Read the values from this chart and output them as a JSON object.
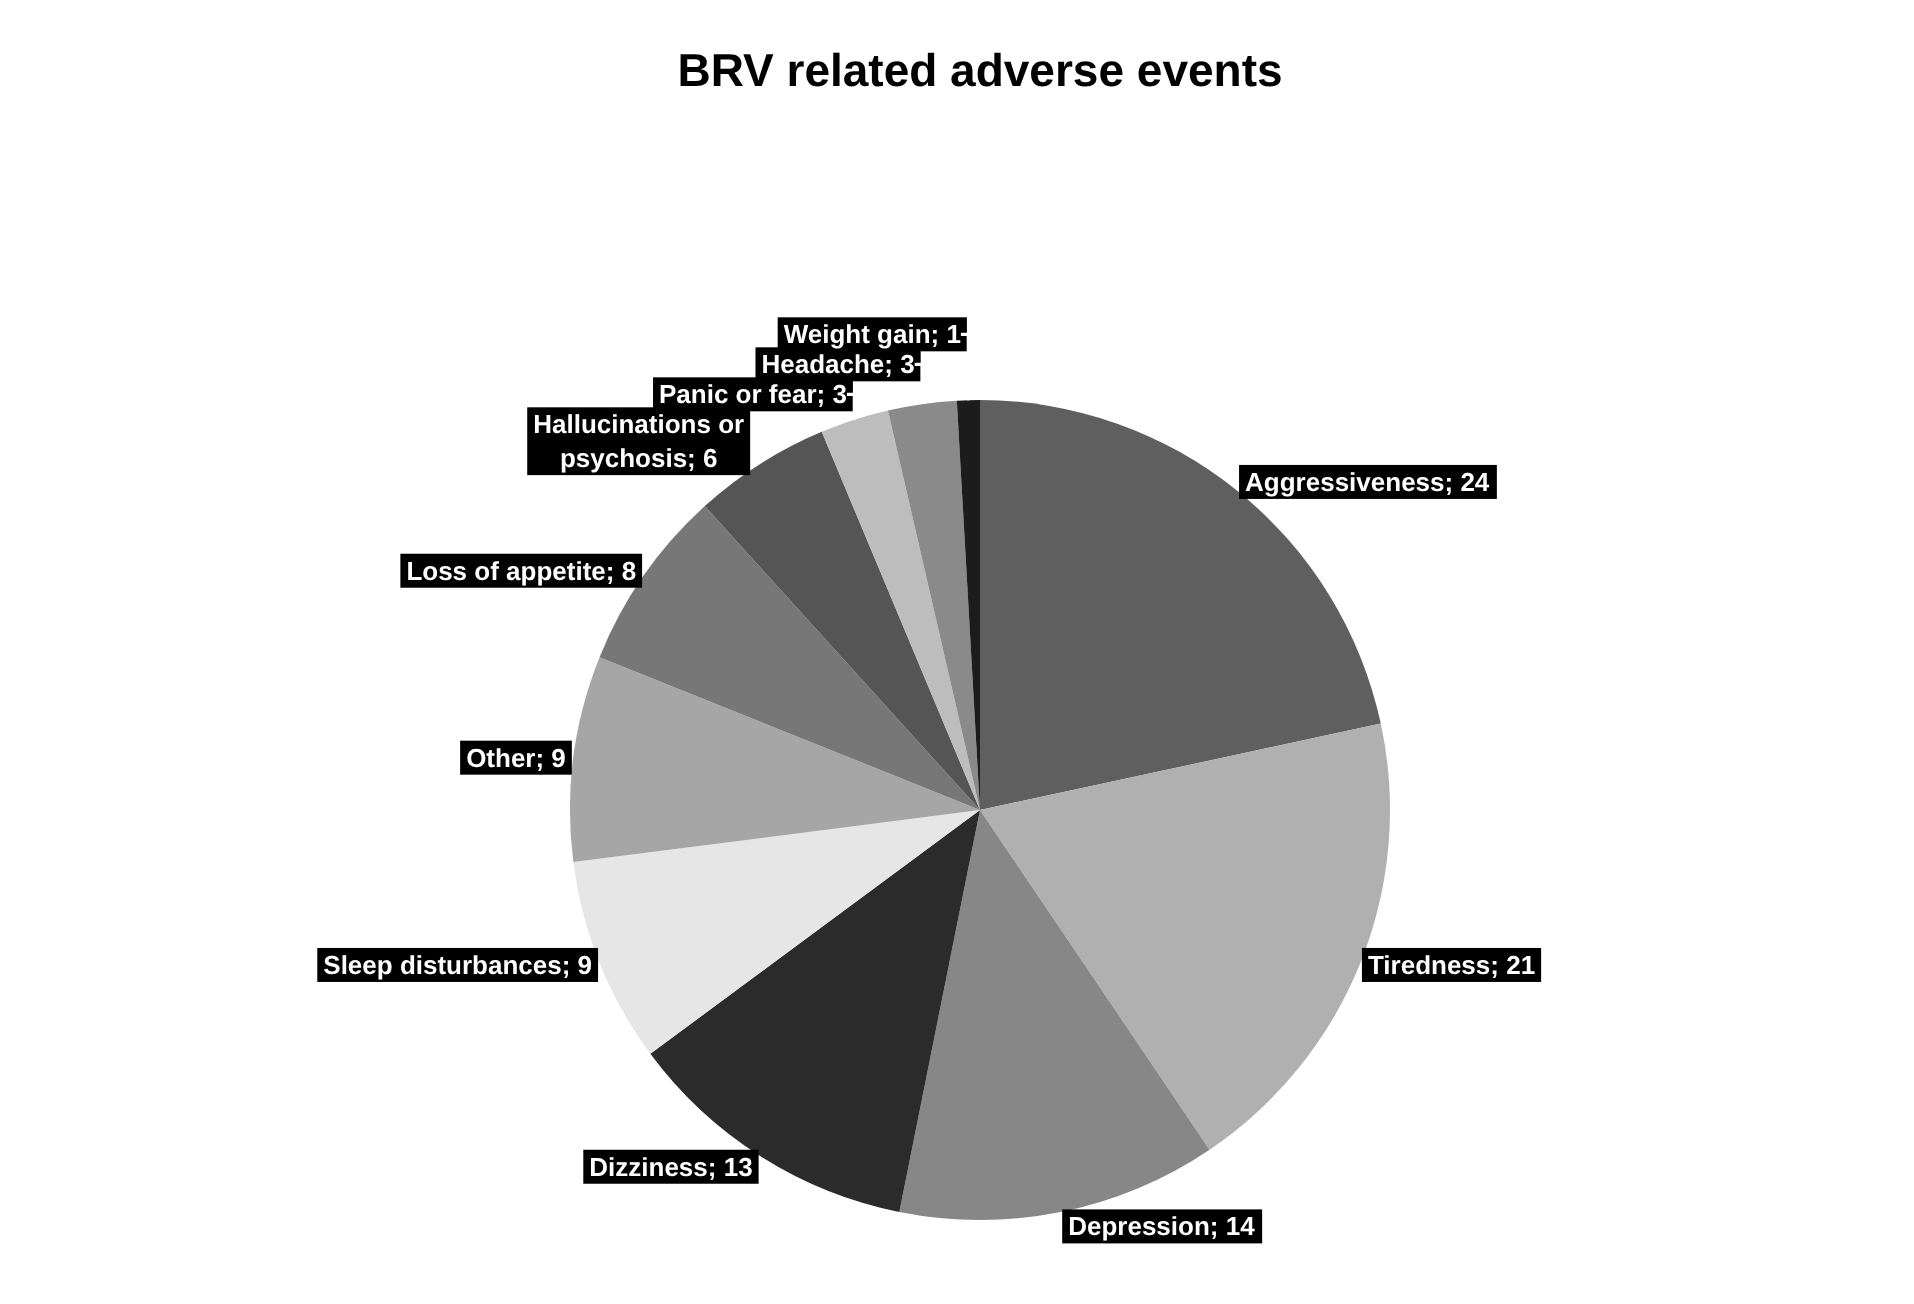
{
  "chart_data": {
    "type": "pie",
    "title": "BRV related adverse events",
    "categories": [
      "Aggressiveness",
      "Tiredness",
      "Depression",
      "Dizziness",
      "Sleep disturbances",
      "Other",
      "Loss of appetite",
      "Hallucinations or psychosis",
      "Panic or fear",
      "Headache",
      "Weight gain"
    ],
    "values": [
      24,
      21,
      14,
      13,
      9,
      9,
      8,
      6,
      3,
      3,
      1
    ],
    "colors": [
      "#5f5f5f",
      "#b0b0b0",
      "#878787",
      "#2b2b2b",
      "#e6e6e6",
      "#a6a6a6",
      "#777777",
      "#555555",
      "#bdbdbd",
      "#8a8a8a",
      "#1c1c1c"
    ],
    "value_labels": [
      "; 24",
      "; 21",
      "; 14",
      "; 13",
      "; 9",
      "; 9",
      "; 8",
      "; 6",
      "; 3",
      "; 3",
      "; 1"
    ]
  }
}
